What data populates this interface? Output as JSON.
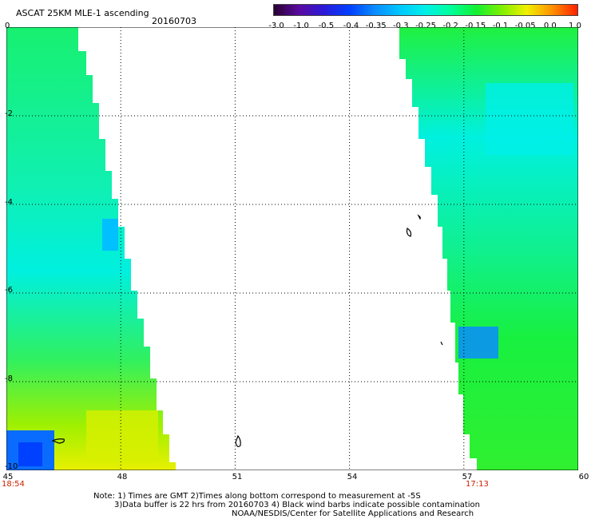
{
  "header": {
    "title": "ASCAT 25KM MLE-1 ascending",
    "date": "20160703"
  },
  "colorbar": {
    "ticks": [
      "-3.0",
      "-1.0",
      "-0.5",
      "-0.4",
      "-0.35",
      "-0.3",
      "-0.25",
      "-0.2",
      "-0.15",
      "-0.1",
      "-0.05",
      "0.0",
      "1.0"
    ],
    "colors": [
      "#2a0033",
      "#5a0aa0",
      "#2a1ad8",
      "#0040ff",
      "#0a8cff",
      "#00c8ff",
      "#00f0e8",
      "#00ff9a",
      "#12f032",
      "#7ef000",
      "#f0f000",
      "#ff9000",
      "#ff2000"
    ]
  },
  "axes": {
    "y_labels": [
      "0",
      "-2",
      "-4",
      "-6",
      "-8",
      "-10"
    ],
    "x_labels": [
      "45",
      "48",
      "51",
      "54",
      "57",
      "60"
    ],
    "grid_line_color": "#000000"
  },
  "map": {
    "lon_range": [
      45,
      60
    ],
    "lat_range": [
      -10,
      0
    ],
    "swath_left_color": "#20e878",
    "swath_right_color": "#20e878",
    "land_outline_color": "#000000"
  },
  "times": {
    "left": "18:54",
    "right": "17:13",
    "color": "#cc2200"
  },
  "notes": {
    "line1": "Note: 1) Times are GMT 2)Times along bottom correspond to measurement at -5S",
    "line2": "3)Data buffer is 22 hrs from 20160703 4) Black wind barbs indicate possible contamination",
    "line3": "NOAA/NESDIS/Center for Satellite Applications and Research"
  }
}
